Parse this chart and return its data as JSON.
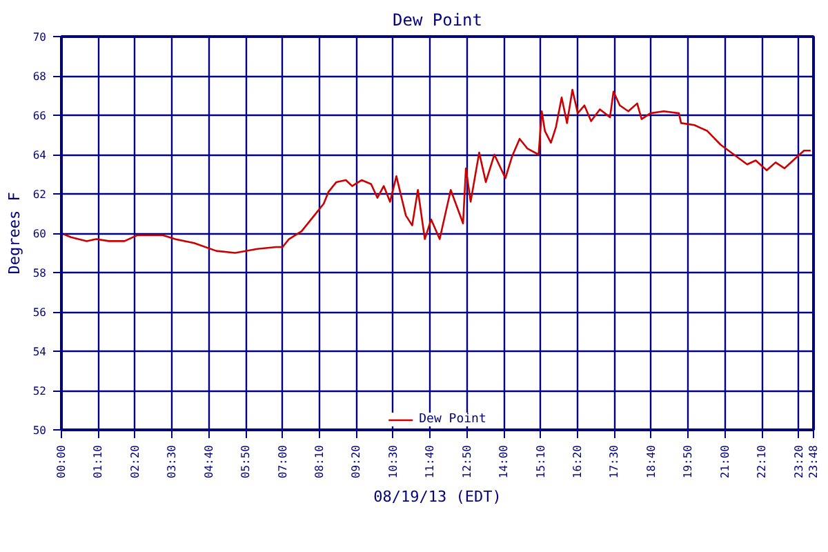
{
  "chart_data": {
    "type": "line",
    "title": "Dew Point",
    "xlabel": "08/19/13 (EDT)",
    "ylabel": "Degrees F",
    "x": [
      0,
      0.3,
      0.8,
      1.1,
      1.5,
      2.0,
      2.4,
      3.2,
      3.6,
      4.2,
      4.9,
      5.5,
      6.2,
      6.8,
      7.0,
      7.2,
      7.6,
      8.0,
      8.3,
      8.45,
      8.7,
      9.0,
      9.2,
      9.5,
      9.8,
      10.0,
      10.2,
      10.4,
      10.6,
      10.9,
      11.1,
      11.28,
      11.5,
      11.7,
      11.97,
      12.32,
      12.71,
      12.8,
      12.95,
      13.22,
      13.43,
      13.7,
      14.05,
      14.26,
      14.5,
      14.75,
      15.1,
      15.2,
      15.3,
      15.49,
      15.65,
      15.83,
      16.0,
      16.17,
      16.34,
      16.55,
      16.76,
      17.04,
      17.36,
      17.47,
      17.67,
      17.94,
      18.22,
      18.36,
      18.64,
      19.06,
      19.54,
      19.61,
      20.03,
      20.44,
      20.86,
      21.28,
      21.7,
      21.97,
      22.32,
      22.6,
      22.88,
      23.22,
      23.5,
      23.71
    ],
    "series": [
      {
        "name": "Dew Point",
        "color": "#cc0000",
        "values": [
          60.0,
          59.8,
          59.6,
          59.7,
          59.6,
          59.6,
          59.9,
          59.9,
          59.7,
          59.5,
          59.1,
          59.0,
          59.2,
          59.3,
          59.3,
          59.7,
          60.1,
          60.9,
          61.5,
          62.1,
          62.6,
          62.7,
          62.4,
          62.7,
          62.5,
          61.8,
          62.4,
          61.6,
          62.9,
          60.9,
          60.4,
          62.2,
          59.7,
          60.7,
          59.7,
          62.2,
          60.5,
          63.3,
          61.6,
          64.1,
          62.6,
          64.0,
          62.8,
          63.9,
          64.8,
          64.3,
          64.0,
          66.2,
          65.2,
          64.6,
          65.4,
          66.9,
          65.6,
          67.3,
          66.1,
          66.5,
          65.7,
          66.3,
          65.9,
          67.2,
          66.5,
          66.2,
          66.6,
          65.8,
          66.1,
          66.2,
          66.1,
          65.6,
          65.5,
          65.2,
          64.5,
          64.0,
          63.5,
          63.7,
          63.2,
          63.6,
          63.3,
          63.8,
          64.2,
          64.2
        ]
      }
    ],
    "xlim": [
      0,
      23.8
    ],
    "ylim": [
      50,
      70
    ],
    "xticks": [
      {
        "value": 0,
        "label": "00:00"
      },
      {
        "value": 1.1667,
        "label": "01:10"
      },
      {
        "value": 2.3333,
        "label": "02:20"
      },
      {
        "value": 3.5,
        "label": "03:30"
      },
      {
        "value": 4.6667,
        "label": "04:40"
      },
      {
        "value": 5.8333,
        "label": "05:50"
      },
      {
        "value": 7,
        "label": "07:00"
      },
      {
        "value": 8.1667,
        "label": "08:10"
      },
      {
        "value": 9.3333,
        "label": "09:20"
      },
      {
        "value": 10.5,
        "label": "10:30"
      },
      {
        "value": 11.6667,
        "label": "11:40"
      },
      {
        "value": 12.8333,
        "label": "12:50"
      },
      {
        "value": 14,
        "label": "14:00"
      },
      {
        "value": 15.1667,
        "label": "15:10"
      },
      {
        "value": 16.3333,
        "label": "16:20"
      },
      {
        "value": 17.5,
        "label": "17:30"
      },
      {
        "value": 18.6667,
        "label": "18:40"
      },
      {
        "value": 19.8333,
        "label": "19:50"
      },
      {
        "value": 21,
        "label": "21:00"
      },
      {
        "value": 22.1667,
        "label": "22:10"
      },
      {
        "value": 23.3333,
        "label": "23:20"
      },
      {
        "value": 23.8,
        "label": "23:48"
      }
    ],
    "yticks": [
      50,
      52,
      54,
      56,
      58,
      60,
      62,
      64,
      66,
      68,
      70
    ],
    "grid": true,
    "legend": "bottom",
    "marker": "none",
    "line_style": "solid"
  }
}
